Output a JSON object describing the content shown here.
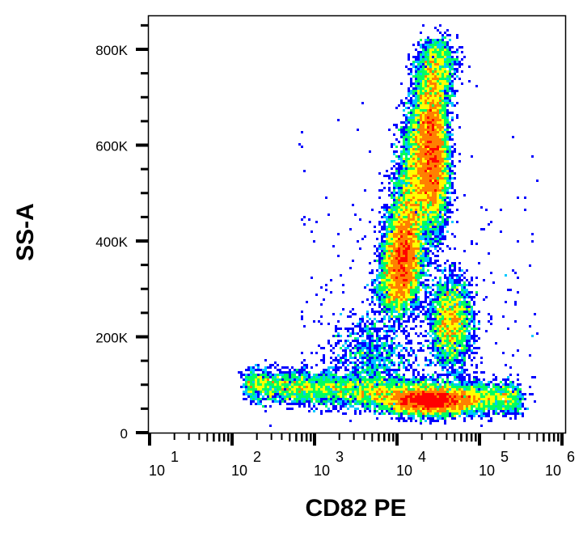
{
  "chart_data": {
    "type": "heatmap",
    "subtype": "flow-cytometry density dot plot",
    "xlabel": "CD82 PE",
    "ylabel": "SS-A",
    "x_scale": "log",
    "xlim": [
      10,
      1000000
    ],
    "x_ticks": [
      {
        "base": "10",
        "exp": "1"
      },
      {
        "base": "10",
        "exp": "2"
      },
      {
        "base": "10",
        "exp": "3"
      },
      {
        "base": "10",
        "exp": "4"
      },
      {
        "base": "10",
        "exp": "5"
      },
      {
        "base": "10",
        "exp": "6"
      }
    ],
    "y_scale": "linear",
    "ylim": [
      0,
      870000
    ],
    "y_ticks": [
      {
        "value": 0,
        "label": "0"
      },
      {
        "value": 200000,
        "label": "200K"
      },
      {
        "value": 400000,
        "label": "400K"
      },
      {
        "value": 600000,
        "label": "600K"
      },
      {
        "value": 800000,
        "label": "800K"
      }
    ],
    "grid": false,
    "colormap": [
      "#0000ff",
      "#00c8ff",
      "#00ff60",
      "#ffff00",
      "#ff8000",
      "#ff0000"
    ],
    "populations": [
      {
        "shape": "segment",
        "from": [
          9000,
          270000
        ],
        "to": [
          32000,
          800000
        ],
        "sd_log": 0.12,
        "sd_y": 22000,
        "n": 9000
      },
      {
        "shape": "gaussian",
        "center": [
          28000,
          560000
        ],
        "sd_log": 0.09,
        "sd_y": 70000,
        "n": 4500
      },
      {
        "shape": "gaussian",
        "center": [
          12000,
          360000
        ],
        "sd_log": 0.11,
        "sd_y": 50000,
        "n": 3000
      },
      {
        "shape": "gaussian",
        "center": [
          45000,
          230000
        ],
        "sd_log": 0.13,
        "sd_y": 45000,
        "n": 2500
      },
      {
        "shape": "segment",
        "from": [
          150,
          100000
        ],
        "to": [
          300000,
          70000
        ],
        "sd_log": 0.05,
        "sd_y": 17000,
        "n": 5500
      },
      {
        "shape": "gaussian",
        "center": [
          25000,
          65000
        ],
        "sd_log": 0.28,
        "sd_y": 14000,
        "n": 4500
      },
      {
        "shape": "gaussian",
        "center": [
          5000,
          160000
        ],
        "sd_log": 0.25,
        "sd_y": 45000,
        "n": 900
      }
    ]
  }
}
